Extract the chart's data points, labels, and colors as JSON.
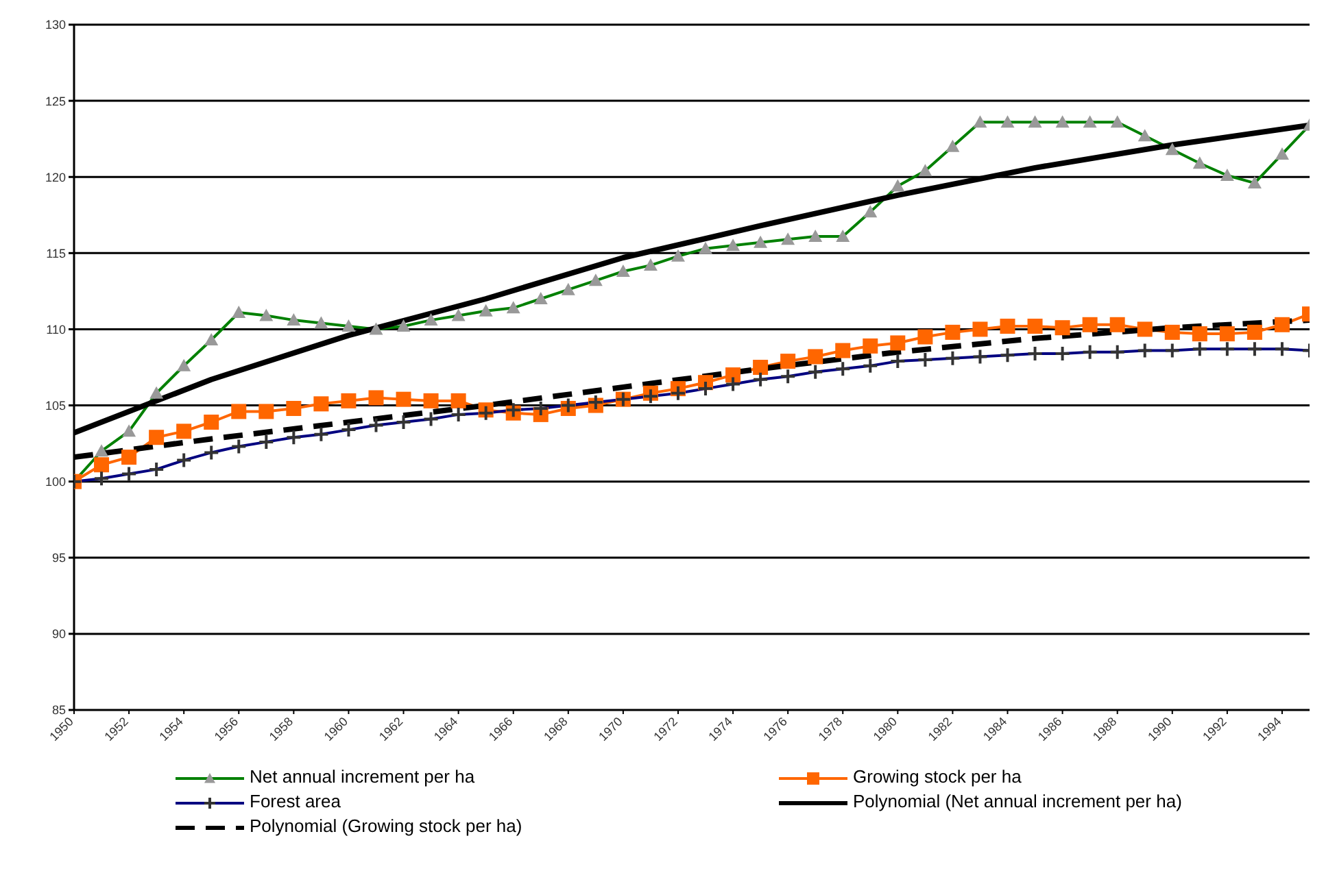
{
  "chart_data": {
    "type": "line",
    "x": [
      1950,
      1951,
      1952,
      1953,
      1954,
      1955,
      1956,
      1957,
      1958,
      1959,
      1960,
      1961,
      1962,
      1963,
      1964,
      1965,
      1966,
      1967,
      1968,
      1969,
      1970,
      1971,
      1972,
      1973,
      1974,
      1975,
      1976,
      1977,
      1978,
      1979,
      1980,
      1981,
      1982,
      1983,
      1984,
      1985,
      1986,
      1987,
      1988,
      1989,
      1990,
      1991,
      1992,
      1993,
      1994,
      1995
    ],
    "series": [
      {
        "name": "Net annual increment per ha",
        "color": "#008000",
        "marker": "triangle",
        "values": [
          100,
          102.0,
          103.3,
          105.8,
          107.6,
          109.3,
          111.1,
          110.9,
          110.6,
          110.4,
          110.2,
          110.0,
          110.2,
          110.6,
          110.9,
          111.2,
          111.4,
          112.0,
          112.6,
          113.2,
          113.8,
          114.2,
          114.8,
          115.3,
          115.5,
          115.7,
          115.9,
          116.1,
          116.1,
          117.7,
          119.4,
          120.4,
          122.0,
          123.6,
          123.6,
          123.6,
          123.6,
          123.6,
          123.6,
          122.7,
          121.8,
          120.9,
          120.1,
          119.6,
          121.5,
          123.4
        ]
      },
      {
        "name": "Growing stock per ha",
        "color": "#ff6600",
        "marker": "square",
        "values": [
          100,
          101.1,
          101.6,
          102.9,
          103.3,
          103.9,
          104.6,
          104.6,
          104.8,
          105.1,
          105.3,
          105.5,
          105.4,
          105.3,
          105.3,
          104.7,
          104.5,
          104.4,
          104.8,
          105.0,
          105.4,
          105.8,
          106.1,
          106.5,
          107.0,
          107.5,
          107.9,
          108.2,
          108.6,
          108.9,
          109.1,
          109.5,
          109.8,
          110.0,
          110.2,
          110.2,
          110.1,
          110.3,
          110.3,
          110.0,
          109.8,
          109.7,
          109.7,
          109.8,
          110.3,
          111.0
        ]
      },
      {
        "name": "Forest area",
        "color": "#000080",
        "marker": "cross",
        "values": [
          100,
          100.2,
          100.5,
          100.8,
          101.4,
          101.9,
          102.3,
          102.6,
          102.9,
          103.1,
          103.4,
          103.7,
          103.9,
          104.1,
          104.4,
          104.5,
          104.7,
          104.8,
          105.0,
          105.2,
          105.4,
          105.6,
          105.8,
          106.1,
          106.4,
          106.7,
          106.9,
          107.2,
          107.4,
          107.6,
          107.9,
          108.0,
          108.1,
          108.2,
          108.3,
          108.4,
          108.4,
          108.5,
          108.5,
          108.6,
          108.6,
          108.7,
          108.7,
          108.7,
          108.7,
          108.6
        ]
      },
      {
        "name": "Polynomial (Net annual increment per ha)",
        "color": "#000000",
        "marker": "none",
        "line_style": "solid",
        "x": [
          1950,
          1955,
          1960,
          1965,
          1970,
          1975,
          1980,
          1985,
          1990,
          1995
        ],
        "values": [
          103.2,
          106.7,
          109.6,
          112.0,
          114.7,
          116.8,
          118.8,
          120.6,
          122.1,
          123.4
        ]
      },
      {
        "name": "Polynomial (Growing stock per ha)",
        "color": "#000000",
        "marker": "none",
        "line_style": "dashed",
        "x": [
          1950,
          1955,
          1960,
          1965,
          1970,
          1975,
          1980,
          1985,
          1990,
          1995
        ],
        "values": [
          101.6,
          102.8,
          103.9,
          105.0,
          106.2,
          107.4,
          108.5,
          109.4,
          110.1,
          110.6
        ]
      }
    ],
    "xlim": [
      1950,
      1995
    ],
    "xticks": [
      1950,
      1952,
      1954,
      1956,
      1958,
      1960,
      1962,
      1964,
      1966,
      1968,
      1970,
      1972,
      1974,
      1976,
      1978,
      1980,
      1982,
      1984,
      1986,
      1988,
      1990,
      1992,
      1994
    ],
    "ylim": [
      85,
      130
    ],
    "yticks": [
      85,
      90,
      95,
      100,
      105,
      110,
      115,
      120,
      125,
      130
    ],
    "grid": "y",
    "legend": "bottom"
  }
}
